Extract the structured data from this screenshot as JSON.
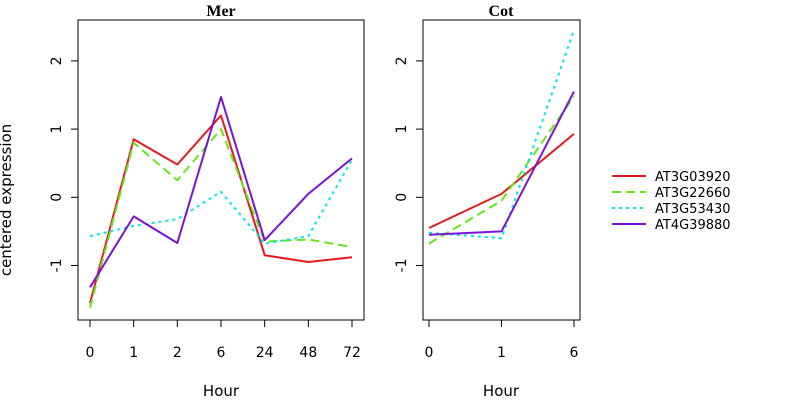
{
  "chart_data": [
    {
      "type": "line",
      "title": "Mer",
      "xlabel": "Hour",
      "ylabel": "centered expression",
      "categories": [
        "0",
        "1",
        "2",
        "6",
        "24",
        "48",
        "72"
      ],
      "ylim": [
        -1.8,
        2.6
      ],
      "yticks": [
        -1,
        0,
        1,
        2
      ],
      "series": [
        {
          "name": "AT3G03920",
          "values": [
            -1.55,
            0.85,
            0.48,
            1.2,
            -0.85,
            -0.95,
            -0.88
          ]
        },
        {
          "name": "AT3G22660",
          "values": [
            -1.62,
            0.8,
            0.25,
            1.0,
            -0.65,
            -0.62,
            -0.73
          ]
        },
        {
          "name": "AT3G53430",
          "values": [
            -0.57,
            -0.42,
            -0.32,
            0.08,
            -0.68,
            -0.57,
            0.55
          ]
        },
        {
          "name": "AT4G39880",
          "values": [
            -1.32,
            -0.28,
            -0.67,
            1.47,
            -0.63,
            0.05,
            0.57
          ]
        }
      ]
    },
    {
      "type": "line",
      "title": "Cot",
      "xlabel": "Hour",
      "categories": [
        "0",
        "1",
        "6"
      ],
      "ylim": [
        -1.8,
        2.6
      ],
      "yticks": [
        -1,
        0,
        1,
        2
      ],
      "series": [
        {
          "name": "AT3G03920",
          "values": [
            -0.45,
            0.05,
            0.93
          ]
        },
        {
          "name": "AT3G22660",
          "values": [
            -0.68,
            -0.05,
            1.48
          ]
        },
        {
          "name": "AT3G53430",
          "values": [
            -0.52,
            -0.6,
            2.45
          ]
        },
        {
          "name": "AT4G39880",
          "values": [
            -0.55,
            -0.5,
            1.55
          ]
        }
      ]
    }
  ],
  "legend": {
    "position": "right",
    "items": [
      {
        "label": "AT3G03920",
        "color": "#e41a1c",
        "dash": "solid"
      },
      {
        "label": "AT3G22660",
        "color": "#66e61a",
        "dash": "dashed"
      },
      {
        "label": "AT3G53430",
        "color": "#00e8e8",
        "dash": "dotted"
      },
      {
        "label": "AT4G39880",
        "color": "#7b12d6",
        "dash": "solid"
      }
    ]
  }
}
